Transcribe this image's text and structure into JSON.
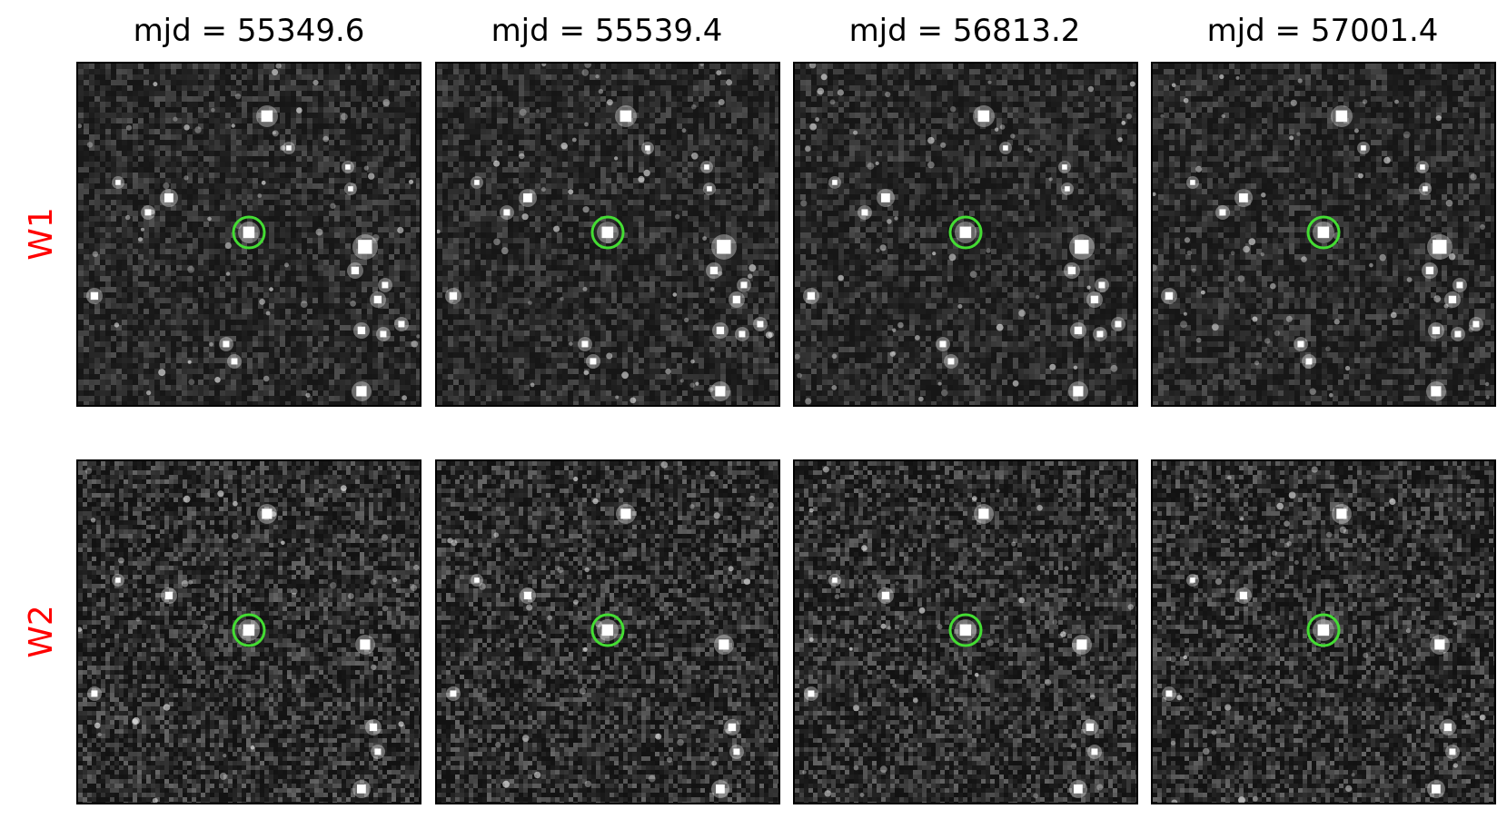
{
  "columns": [
    {
      "title": "mjd = 55349.6"
    },
    {
      "title": "mjd = 55539.4"
    },
    {
      "title": "mjd = 56813.2"
    },
    {
      "title": "mjd = 57001.4"
    }
  ],
  "rows": [
    {
      "label": "W1"
    },
    {
      "label": "W2"
    }
  ],
  "colors": {
    "row_label": "#ff0000",
    "target_circle": "#44dd33",
    "background": "#161616",
    "star": "#ffffff"
  }
}
